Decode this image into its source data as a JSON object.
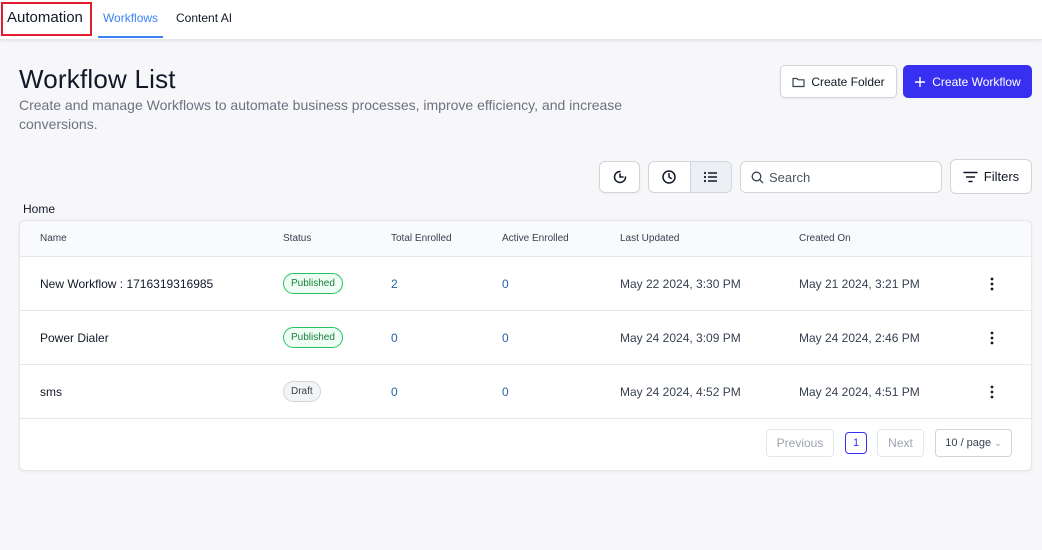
{
  "topbar": {
    "brand": "Automation",
    "tabs": [
      {
        "label": "Workflows",
        "active": true
      },
      {
        "label": "Content AI",
        "active": false
      }
    ]
  },
  "header": {
    "title": "Workflow List",
    "description": "Create and manage Workflows to automate business processes, improve efficiency, and increase conversions.",
    "create_folder_label": "Create Folder",
    "create_workflow_label": "Create Workflow"
  },
  "toolbar": {
    "search_placeholder": "Search",
    "filters_label": "Filters"
  },
  "breadcrumb": "Home",
  "table": {
    "columns": [
      "Name",
      "Status",
      "Total Enrolled",
      "Active Enrolled",
      "Last Updated",
      "Created On"
    ],
    "rows": [
      {
        "name": "New Workflow : 1716319316985",
        "status": "Published",
        "total": "2",
        "active": "0",
        "updated": "May 22 2024, 3:30 PM",
        "created": "May 21 2024, 3:21 PM"
      },
      {
        "name": "Power Dialer",
        "status": "Published",
        "total": "0",
        "active": "0",
        "updated": "May 24 2024, 3:09 PM",
        "created": "May 24 2024, 2:46 PM"
      },
      {
        "name": "sms",
        "status": "Draft",
        "total": "0",
        "active": "0",
        "updated": "May 24 2024, 4:52 PM",
        "created": "May 24 2024, 4:51 PM"
      }
    ]
  },
  "pagination": {
    "previous_label": "Previous",
    "current_page": "1",
    "next_label": "Next",
    "page_size_label": "10 / page"
  },
  "colors": {
    "accent": "#3730f0",
    "link": "#3b82f6",
    "published": "#22c55e",
    "highlight_border": "#e11d2e"
  },
  "icons": [
    "folder-icon",
    "plus-icon",
    "dashboard-icon",
    "clock-icon",
    "list-icon",
    "search-icon",
    "filter-icon",
    "kebab-icon",
    "chevron-down-icon"
  ]
}
